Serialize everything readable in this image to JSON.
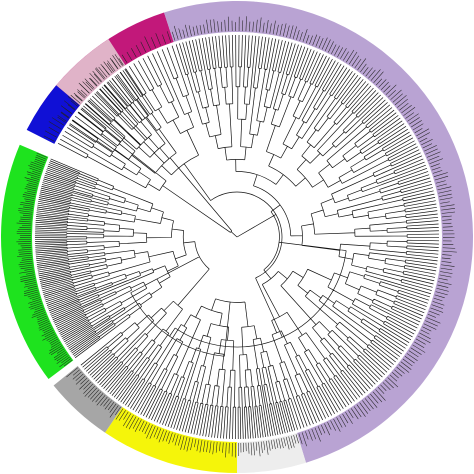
{
  "figure": {
    "type": "circular-phylogenetic-tree",
    "leaf_labels_legible": false,
    "clades": [
      {
        "id": "magenta",
        "color": "#c2187a",
        "leaf_count": 26
      },
      {
        "id": "lavender",
        "color": "#b9a3d3",
        "leaf_count": 190
      },
      {
        "id": "white",
        "color": "#ededed",
        "leaf_count": 24
      },
      {
        "id": "yellow",
        "color": "#f5f50a",
        "leaf_count": 40
      },
      {
        "id": "gray",
        "color": "#a6a6a6",
        "leaf_count": 22
      },
      {
        "id": "green",
        "color": "#1ee31e",
        "leaf_count": 110
      },
      {
        "id": "blue",
        "color": "#1010d6",
        "leaf_count": 10
      },
      {
        "id": "pink",
        "color": "#e0b3c8",
        "leaf_count": 18
      }
    ]
  }
}
